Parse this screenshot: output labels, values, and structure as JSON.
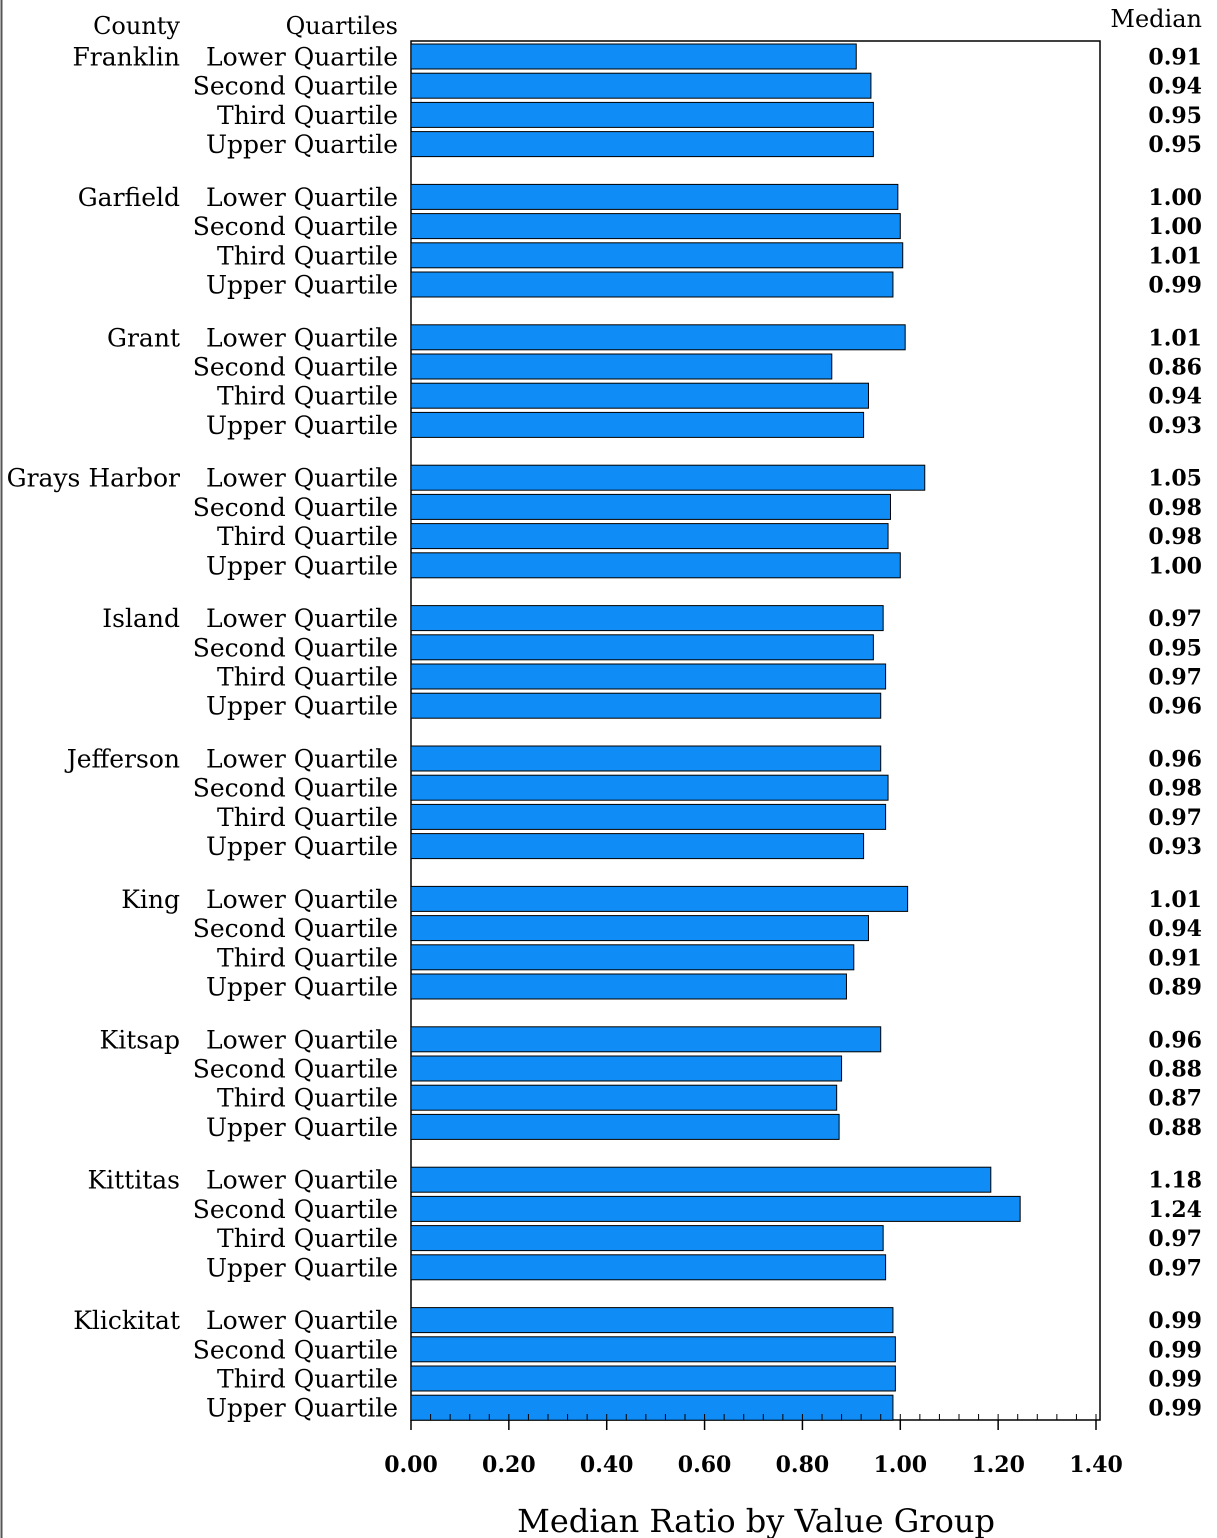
{
  "chart_data": {
    "type": "bar",
    "orientation": "horizontal",
    "headers": {
      "county": "County",
      "quartiles": "Quartiles",
      "median": "Median"
    },
    "xlabel": "Median Ratio by Value Group",
    "xlim": [
      0,
      1.4
    ],
    "xticks": [
      "0.00",
      "0.20",
      "0.40",
      "0.60",
      "0.80",
      "1.00",
      "1.20",
      "1.40"
    ],
    "bar_color": "#0f8cf5",
    "groups": [
      {
        "county": "Franklin",
        "bars": [
          {
            "label": "Lower Quartile",
            "value": 0.91,
            "value_label": "0.91"
          },
          {
            "label": "Second Quartile",
            "value": 0.94,
            "value_label": "0.94"
          },
          {
            "label": "Third Quartile",
            "value": 0.945,
            "value_label": "0.95"
          },
          {
            "label": "Upper Quartile",
            "value": 0.945,
            "value_label": "0.95"
          }
        ]
      },
      {
        "county": "Garfield",
        "bars": [
          {
            "label": "Lower Quartile",
            "value": 0.995,
            "value_label": "1.00"
          },
          {
            "label": "Second Quartile",
            "value": 1.0,
            "value_label": "1.00"
          },
          {
            "label": "Third Quartile",
            "value": 1.005,
            "value_label": "1.01"
          },
          {
            "label": "Upper Quartile",
            "value": 0.985,
            "value_label": "0.99"
          }
        ]
      },
      {
        "county": "Grant",
        "bars": [
          {
            "label": "Lower Quartile",
            "value": 1.01,
            "value_label": "1.01"
          },
          {
            "label": "Second Quartile",
            "value": 0.86,
            "value_label": "0.86"
          },
          {
            "label": "Third Quartile",
            "value": 0.935,
            "value_label": "0.94"
          },
          {
            "label": "Upper Quartile",
            "value": 0.925,
            "value_label": "0.93"
          }
        ]
      },
      {
        "county": "Grays Harbor",
        "bars": [
          {
            "label": "Lower Quartile",
            "value": 1.05,
            "value_label": "1.05"
          },
          {
            "label": "Second Quartile",
            "value": 0.98,
            "value_label": "0.98"
          },
          {
            "label": "Third Quartile",
            "value": 0.975,
            "value_label": "0.98"
          },
          {
            "label": "Upper Quartile",
            "value": 1.0,
            "value_label": "1.00"
          }
        ]
      },
      {
        "county": "Island",
        "bars": [
          {
            "label": "Lower Quartile",
            "value": 0.965,
            "value_label": "0.97"
          },
          {
            "label": "Second Quartile",
            "value": 0.945,
            "value_label": "0.95"
          },
          {
            "label": "Third Quartile",
            "value": 0.97,
            "value_label": "0.97"
          },
          {
            "label": "Upper Quartile",
            "value": 0.96,
            "value_label": "0.96"
          }
        ]
      },
      {
        "county": "Jefferson",
        "bars": [
          {
            "label": "Lower Quartile",
            "value": 0.96,
            "value_label": "0.96"
          },
          {
            "label": "Second Quartile",
            "value": 0.975,
            "value_label": "0.98"
          },
          {
            "label": "Third Quartile",
            "value": 0.97,
            "value_label": "0.97"
          },
          {
            "label": "Upper Quartile",
            "value": 0.925,
            "value_label": "0.93"
          }
        ]
      },
      {
        "county": "King",
        "bars": [
          {
            "label": "Lower Quartile",
            "value": 1.015,
            "value_label": "1.01"
          },
          {
            "label": "Second Quartile",
            "value": 0.935,
            "value_label": "0.94"
          },
          {
            "label": "Third Quartile",
            "value": 0.905,
            "value_label": "0.91"
          },
          {
            "label": "Upper Quartile",
            "value": 0.89,
            "value_label": "0.89"
          }
        ]
      },
      {
        "county": "Kitsap",
        "bars": [
          {
            "label": "Lower Quartile",
            "value": 0.96,
            "value_label": "0.96"
          },
          {
            "label": "Second Quartile",
            "value": 0.88,
            "value_label": "0.88"
          },
          {
            "label": "Third Quartile",
            "value": 0.87,
            "value_label": "0.87"
          },
          {
            "label": "Upper Quartile",
            "value": 0.875,
            "value_label": "0.88"
          }
        ]
      },
      {
        "county": "Kittitas",
        "bars": [
          {
            "label": "Lower Quartile",
            "value": 1.185,
            "value_label": "1.18"
          },
          {
            "label": "Second Quartile",
            "value": 1.245,
            "value_label": "1.24"
          },
          {
            "label": "Third Quartile",
            "value": 0.965,
            "value_label": "0.97"
          },
          {
            "label": "Upper Quartile",
            "value": 0.97,
            "value_label": "0.97"
          }
        ]
      },
      {
        "county": "Klickitat",
        "bars": [
          {
            "label": "Lower Quartile",
            "value": 0.985,
            "value_label": "0.99"
          },
          {
            "label": "Second Quartile",
            "value": 0.99,
            "value_label": "0.99"
          },
          {
            "label": "Third Quartile",
            "value": 0.99,
            "value_label": "0.99"
          },
          {
            "label": "Upper Quartile",
            "value": 0.985,
            "value_label": "0.99"
          }
        ]
      }
    ]
  }
}
